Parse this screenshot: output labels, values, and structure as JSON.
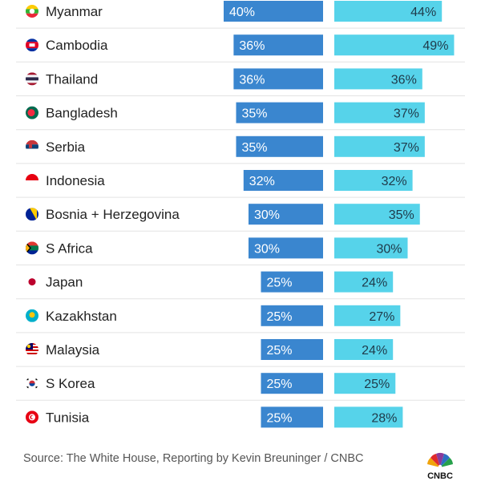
{
  "chart_data": {
    "type": "bar",
    "categories": [
      "Myanmar",
      "Cambodia",
      "Thailand",
      "Bangladesh",
      "Serbia",
      "Indonesia",
      "Bosnia + Herzegovina",
      "S Africa",
      "Japan",
      "Kazakhstan",
      "Malaysia",
      "S Korea",
      "Tunisia"
    ],
    "series": [
      {
        "values": [
          40,
          36,
          36,
          35,
          35,
          32,
          30,
          30,
          25,
          25,
          25,
          25,
          25
        ],
        "labels": [
          "40%",
          "36%",
          "36%",
          "35%",
          "35%",
          "32%",
          "30%",
          "30%",
          "25%",
          "25%",
          "25%",
          "25%",
          "25%"
        ],
        "color": "#3a86cf"
      },
      {
        "values": [
          44,
          49,
          36,
          37,
          37,
          32,
          35,
          30,
          24,
          27,
          24,
          25,
          28
        ],
        "labels": [
          "44%",
          "49%",
          "36%",
          "37%",
          "37%",
          "32%",
          "35%",
          "30%",
          "24%",
          "27%",
          "24%",
          "25%",
          "28%"
        ],
        "color": "#56d3ea"
      }
    ],
    "flags": [
      "myanmar-flag-icon",
      "cambodia-flag-icon",
      "thailand-flag-icon",
      "bangladesh-flag-icon",
      "serbia-flag-icon",
      "indonesia-flag-icon",
      "bosnia-flag-icon",
      "south-africa-flag-icon",
      "japan-flag-icon",
      "kazakhstan-flag-icon",
      "malaysia-flag-icon",
      "south-korea-flag-icon",
      "tunisia-flag-icon"
    ],
    "grid": "row dividers"
  },
  "footer": {
    "source": "Source: The White House, Reporting by Kevin Breuninger / CNBC",
    "logo_text": "CNBC"
  }
}
